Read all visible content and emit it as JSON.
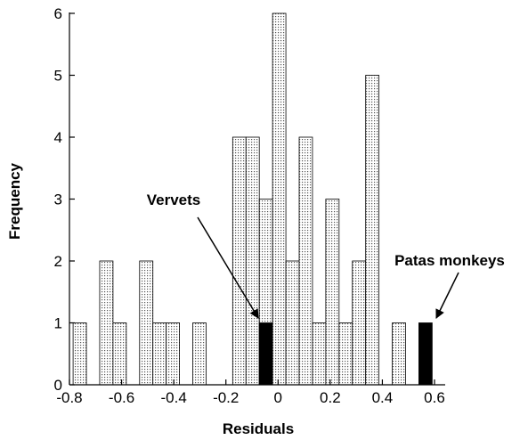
{
  "chart_data": {
    "type": "histogram",
    "x_label": "Residuals",
    "y_label": "Frequency",
    "bins": [
      -0.786,
      -0.735,
      -0.684,
      -0.633,
      -0.582,
      -0.531,
      -0.48,
      -0.429,
      -0.378,
      -0.327,
      -0.276,
      -0.225,
      -0.174,
      -0.123,
      -0.072,
      -0.021,
      0.03,
      0.081,
      0.132,
      0.183,
      0.234,
      0.285,
      0.336,
      0.387,
      0.438,
      0.489,
      0.54,
      0.591
    ],
    "series": [
      {
        "color": "#d8d8d8",
        "values": [
          1,
          0,
          2,
          1,
          0,
          2,
          1,
          1,
          0,
          1,
          0,
          0,
          4,
          4,
          3,
          6,
          2,
          4,
          1,
          3,
          1,
          2,
          5,
          0,
          1,
          0,
          0
        ]
      },
      {
        "color": "#000000",
        "values": [
          0,
          0,
          0,
          0,
          0,
          0,
          0,
          0,
          0,
          0,
          0,
          0,
          0,
          0,
          1,
          0,
          0,
          0,
          0,
          0,
          0,
          0,
          0,
          0,
          0,
          0,
          1
        ]
      }
    ],
    "annotations": [
      "Vervets",
      "Patas monkeys"
    ],
    "xlim": [
      -0.8,
      0.6
    ],
    "xticks": [
      -0.8,
      -0.6,
      -0.4,
      -0.2,
      0,
      0.2,
      0.4,
      0.6
    ],
    "ylim": [
      0,
      6
    ],
    "yticks": [
      0,
      1,
      2,
      3,
      4,
      5,
      6
    ]
  }
}
